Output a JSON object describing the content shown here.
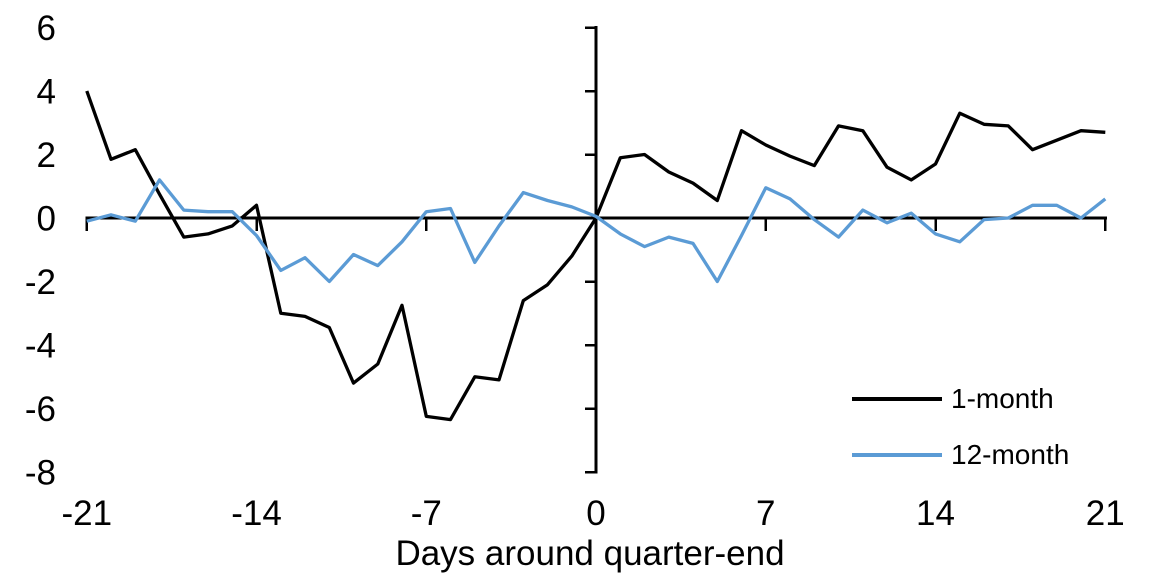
{
  "chart_data": {
    "type": "line",
    "title": "",
    "xlabel": "Days around quarter-end",
    "ylabel": "",
    "x": [
      -21,
      -20,
      -19,
      -18,
      -17,
      -16,
      -15,
      -14,
      -13,
      -12,
      -11,
      -10,
      -9,
      -8,
      -7,
      -6,
      -5,
      -4,
      -3,
      -2,
      -1,
      0,
      1,
      2,
      3,
      4,
      5,
      6,
      7,
      8,
      9,
      10,
      11,
      12,
      13,
      14,
      15,
      16,
      17,
      18,
      19,
      20,
      21
    ],
    "series": [
      {
        "name": "1-month",
        "color": "#000000",
        "values": [
          4.0,
          1.85,
          2.15,
          0.75,
          -0.6,
          -0.5,
          -0.25,
          0.4,
          -3.0,
          -3.1,
          -3.45,
          -5.2,
          -4.6,
          -2.75,
          -6.25,
          -6.35,
          -5.0,
          -5.1,
          -2.6,
          -2.1,
          -1.2,
          0.0,
          1.9,
          2.0,
          1.45,
          1.1,
          0.55,
          2.75,
          2.3,
          1.95,
          1.65,
          2.9,
          2.75,
          1.6,
          1.2,
          1.7,
          3.3,
          2.95,
          2.9,
          2.15,
          2.45,
          2.75,
          2.7
        ]
      },
      {
        "name": "12-month",
        "color": "#5B9BD5",
        "values": [
          -0.1,
          0.1,
          -0.1,
          1.2,
          0.25,
          0.2,
          0.2,
          -0.55,
          -1.65,
          -1.25,
          -2.0,
          -1.15,
          -1.5,
          -0.75,
          0.2,
          0.3,
          -1.4,
          -0.25,
          0.8,
          0.55,
          0.35,
          0.05,
          -0.5,
          -0.9,
          -0.6,
          -0.8,
          -2.0,
          -0.55,
          0.95,
          0.6,
          -0.05,
          -0.6,
          0.25,
          -0.15,
          0.15,
          -0.5,
          -0.75,
          -0.05,
          0.0,
          0.4,
          0.4,
          0.0,
          0.6
        ]
      }
    ],
    "xticks": [
      -21,
      -14,
      -7,
      0,
      7,
      14,
      21
    ],
    "yticks": [
      6,
      4,
      2,
      0,
      -2,
      -4,
      -6,
      -8
    ],
    "xlim": [
      -21,
      21
    ],
    "ylim": [
      -8,
      6
    ],
    "grid": false,
    "legend_position": "inside-lower-right",
    "axis_color": "#000000",
    "background": "#FFFFFF"
  }
}
